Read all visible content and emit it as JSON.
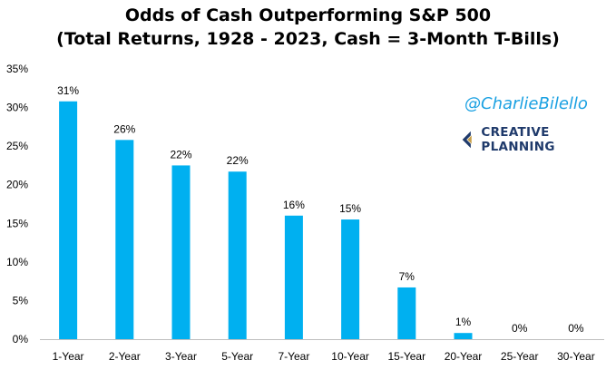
{
  "header": {
    "title_line1": "Odds of Cash Outperforming S&P 500",
    "title_line2": "(Total Returns, 1928 - 2023, Cash = 3-Month T-Bills)"
  },
  "branding": {
    "handle": "@CharlieBilello",
    "company": "CREATIVE PLANNING",
    "logo_icon": "creative-planning-logo-icon"
  },
  "chart_data": {
    "type": "bar",
    "title": "Odds of Cash Outperforming S&P 500 (Total Returns, 1928 - 2023, Cash = 3-Month T-Bills)",
    "categories": [
      "1-Year",
      "2-Year",
      "3-Year",
      "5-Year",
      "7-Year",
      "10-Year",
      "15-Year",
      "20-Year",
      "25-Year",
      "30-Year"
    ],
    "values": [
      31,
      26,
      22,
      22,
      16,
      15,
      7,
      1,
      0,
      0
    ],
    "true_values_approx": [
      30.8,
      25.8,
      22.5,
      21.7,
      16.0,
      15.5,
      6.7,
      0.8,
      0,
      0
    ],
    "data_labels": [
      "31%",
      "26%",
      "22%",
      "22%",
      "16%",
      "15%",
      "7%",
      "1%",
      "0%",
      "0%"
    ],
    "yticks": [
      0,
      5,
      10,
      15,
      20,
      25,
      30,
      35
    ],
    "ytick_labels": [
      "0%",
      "5%",
      "10%",
      "15%",
      "20%",
      "25%",
      "30%",
      "35%"
    ],
    "ylim": [
      0,
      35
    ],
    "xlabel": "",
    "ylabel": "",
    "grid": false,
    "legend": "none",
    "bar_color": "#00b0f0"
  }
}
